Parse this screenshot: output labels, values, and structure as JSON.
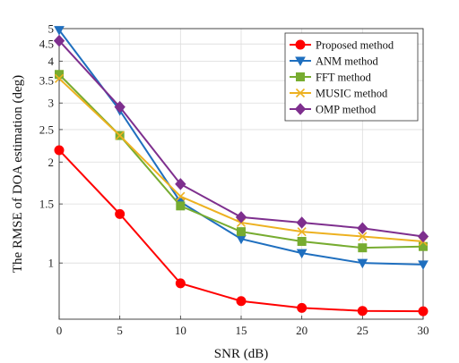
{
  "chart_data": {
    "type": "line",
    "xlabel": "SNR (dB)",
    "ylabel": "The RMSE of DOA estimation (deg)",
    "x": [
      0,
      5,
      10,
      15,
      20,
      25,
      30
    ],
    "xlim": [
      0,
      30
    ],
    "ylim": [
      0.68,
      5
    ],
    "yscale": "log",
    "x_ticks": [
      "0",
      "5",
      "10",
      "15",
      "20",
      "25",
      "30"
    ],
    "y_ticks": [
      1,
      1.5,
      2,
      2.5,
      3,
      3.5,
      4,
      4.5,
      5
    ],
    "y_tick_labels": [
      "1",
      "1.5",
      "2",
      "2.5",
      "3",
      "3.5",
      "4",
      "4.5",
      "5"
    ],
    "grid": true,
    "legend_position": "top-right",
    "series": [
      {
        "name": "Proposed method",
        "color": "#ff0000",
        "marker": "circle",
        "values": [
          2.17,
          1.4,
          0.87,
          0.77,
          0.735,
          0.72,
          0.718
        ]
      },
      {
        "name": "ANM method",
        "color": "#1f6fbf",
        "marker": "triangle-down",
        "values": [
          4.95,
          2.85,
          1.52,
          1.18,
          1.07,
          1.0,
          0.99
        ]
      },
      {
        "name": "FFT method",
        "color": "#77ac30",
        "marker": "square",
        "values": [
          3.65,
          2.4,
          1.48,
          1.24,
          1.16,
          1.11,
          1.12
        ]
      },
      {
        "name": "MUSIC method",
        "color": "#edb120",
        "marker": "x",
        "values": [
          3.55,
          2.4,
          1.58,
          1.32,
          1.24,
          1.2,
          1.16
        ]
      },
      {
        "name": "OMP method",
        "color": "#7e2f8e",
        "marker": "diamond",
        "values": [
          4.6,
          2.92,
          1.72,
          1.37,
          1.32,
          1.27,
          1.2
        ]
      }
    ]
  }
}
